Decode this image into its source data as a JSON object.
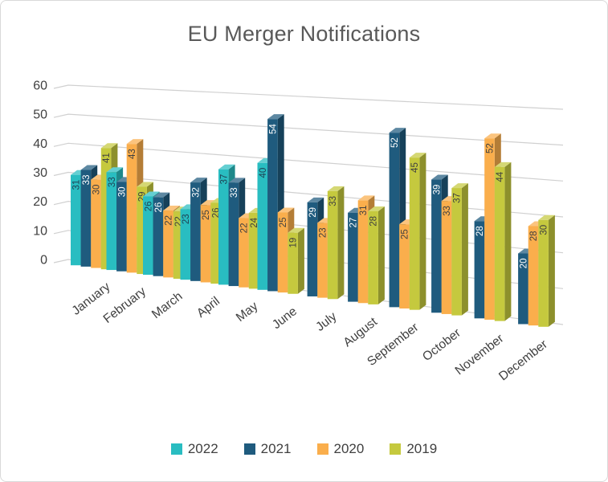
{
  "title": "EU Merger Notifications",
  "chart_data": {
    "type": "bar",
    "projection": "3d-clustered-column",
    "title": "EU Merger Notifications",
    "categories": [
      "January",
      "February",
      "March",
      "April",
      "May",
      "June",
      "July",
      "August",
      "September",
      "October",
      "November",
      "December"
    ],
    "series": [
      {
        "name": "2022",
        "color": "#29BDC1",
        "label_color": "#1E4355",
        "values": [
          31,
          33,
          26,
          23,
          37,
          40,
          null,
          null,
          null,
          null,
          null,
          null
        ]
      },
      {
        "name": "2021",
        "color": "#1F5B7E",
        "label_color": "#FFFFFF",
        "values": [
          33,
          30,
          26,
          32,
          33,
          54,
          29,
          27,
          52,
          39,
          28,
          20
        ]
      },
      {
        "name": "2020",
        "color": "#FAAE4C",
        "label_color": "#404040",
        "values": [
          30,
          43,
          22,
          25,
          22,
          25,
          23,
          31,
          25,
          33,
          52,
          28
        ]
      },
      {
        "name": "2019",
        "color": "#C5C93E",
        "label_color": "#404040",
        "values": [
          41,
          29,
          22,
          26,
          24,
          19,
          33,
          28,
          45,
          37,
          44,
          30
        ]
      }
    ],
    "ylim": [
      0,
      60
    ],
    "yticks": [
      0,
      10,
      20,
      30,
      40,
      50,
      60
    ],
    "grid": true,
    "gridline_color": "#D0D0D0",
    "axis_text_color": "#404040",
    "title_color": "#595959",
    "legend_position": "bottom",
    "legend_labels": [
      "2022",
      "2021",
      "2020",
      "2019"
    ]
  }
}
